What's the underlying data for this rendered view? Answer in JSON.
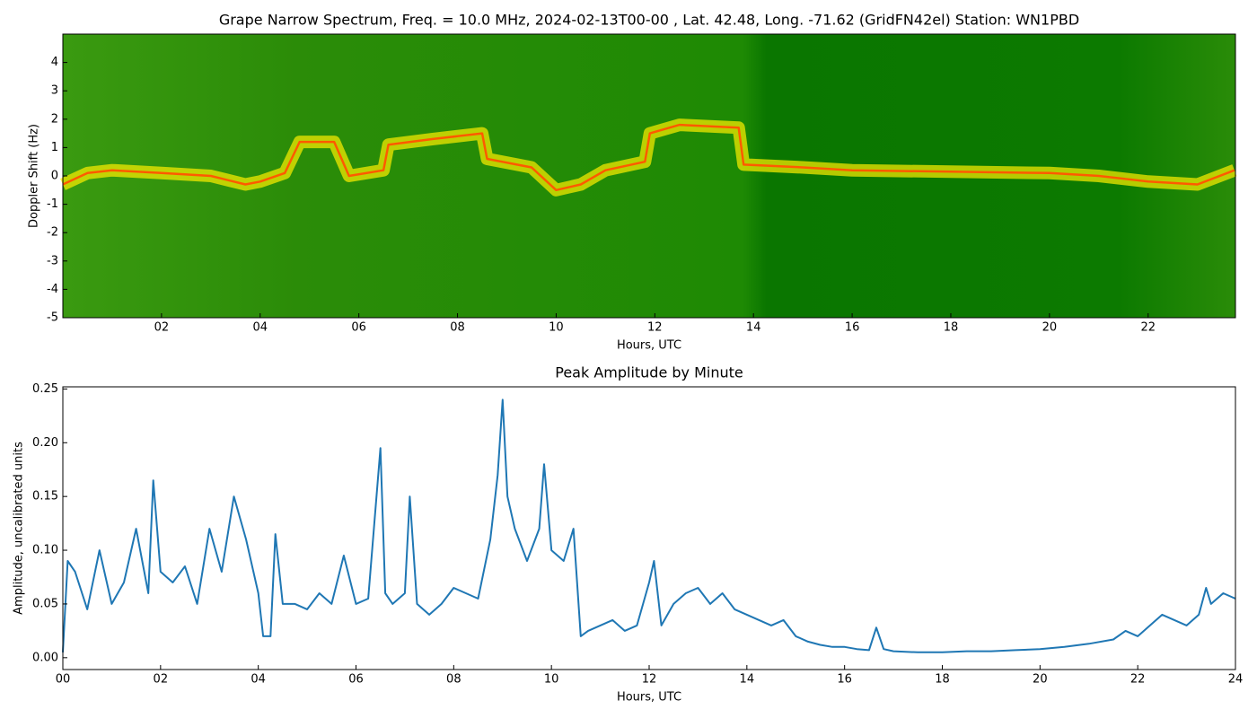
{
  "chart_data": [
    {
      "type": "spectrogram",
      "title": "Grape Narrow Spectrum, Freq. = 10.0 MHz, 2024-02-13T00-00 , Lat.  42.48, Long. -71.62 (GridFN42el) Station: WN1PBD",
      "xlabel": "Hours, UTC",
      "ylabel": "Doppler Shift (Hz)",
      "x": [
        0,
        0.5,
        1,
        2,
        3,
        3.7,
        4,
        4.5,
        4.8,
        5.5,
        5.8,
        6.5,
        6.6,
        7.5,
        8.5,
        8.6,
        9.5,
        10,
        10.5,
        11,
        11.8,
        11.9,
        12.5,
        13.7,
        13.8,
        15,
        16,
        18,
        20,
        21,
        22,
        23,
        23.75
      ],
      "values": [
        -0.3,
        0.1,
        0.2,
        0.1,
        0,
        -0.3,
        -0.2,
        0.1,
        1.2,
        1.2,
        0,
        0.2,
        1.1,
        1.3,
        1.5,
        0.6,
        0.3,
        -0.5,
        -0.3,
        0.2,
        0.5,
        1.5,
        1.8,
        1.7,
        0.4,
        0.3,
        0.2,
        0.15,
        0.1,
        0,
        -0.2,
        -0.3,
        0.2
      ],
      "color": "#ffee00",
      "xlim": [
        0,
        23.77
      ],
      "ylim": [
        -5,
        5
      ],
      "xticks": [
        {
          "value": 2,
          "label": "02"
        },
        {
          "value": 4,
          "label": "04"
        },
        {
          "value": 6,
          "label": "06"
        },
        {
          "value": 8,
          "label": "08"
        },
        {
          "value": 10,
          "label": "10"
        },
        {
          "value": 12,
          "label": "12"
        },
        {
          "value": 14,
          "label": "14"
        },
        {
          "value": 16,
          "label": "16"
        },
        {
          "value": 18,
          "label": "18"
        },
        {
          "value": 20,
          "label": "20"
        },
        {
          "value": 22,
          "label": "22"
        }
      ],
      "yticks": [
        -5,
        -4,
        -3,
        -2,
        -1,
        0,
        1,
        2,
        3,
        4
      ]
    },
    {
      "type": "line",
      "title": "Peak Amplitude by Minute",
      "xlabel": "Hours, UTC",
      "ylabel": "Amplitude, uncalibrated units",
      "x": [
        0,
        0.1,
        0.25,
        0.5,
        0.75,
        1.0,
        1.25,
        1.5,
        1.75,
        1.85,
        2.0,
        2.25,
        2.5,
        2.75,
        3.0,
        3.25,
        3.5,
        3.75,
        4.0,
        4.1,
        4.25,
        4.35,
        4.5,
        4.75,
        5.0,
        5.25,
        5.5,
        5.75,
        6.0,
        6.25,
        6.5,
        6.6,
        6.75,
        7.0,
        7.1,
        7.25,
        7.5,
        7.75,
        8.0,
        8.25,
        8.5,
        8.75,
        8.9,
        9.0,
        9.1,
        9.25,
        9.5,
        9.75,
        9.85,
        10.0,
        10.25,
        10.45,
        10.6,
        10.75,
        11.0,
        11.25,
        11.5,
        11.75,
        12.0,
        12.1,
        12.25,
        12.5,
        12.75,
        13.0,
        13.25,
        13.5,
        13.75,
        14.0,
        14.25,
        14.5,
        14.75,
        15.0,
        15.25,
        15.5,
        15.75,
        16.0,
        16.25,
        16.5,
        16.65,
        16.8,
        17.0,
        17.5,
        18.0,
        18.5,
        19.0,
        19.5,
        20.0,
        20.5,
        21.0,
        21.5,
        21.75,
        22.0,
        22.25,
        22.5,
        22.75,
        23.0,
        23.25,
        23.4,
        23.5,
        23.75,
        24.0
      ],
      "values": [
        0.005,
        0.09,
        0.08,
        0.045,
        0.1,
        0.05,
        0.07,
        0.12,
        0.06,
        0.165,
        0.08,
        0.07,
        0.085,
        0.05,
        0.12,
        0.08,
        0.15,
        0.11,
        0.06,
        0.02,
        0.02,
        0.115,
        0.05,
        0.05,
        0.045,
        0.06,
        0.05,
        0.095,
        0.05,
        0.055,
        0.195,
        0.06,
        0.05,
        0.06,
        0.15,
        0.05,
        0.04,
        0.05,
        0.065,
        0.06,
        0.055,
        0.11,
        0.17,
        0.24,
        0.15,
        0.12,
        0.09,
        0.12,
        0.18,
        0.1,
        0.09,
        0.12,
        0.02,
        0.025,
        0.03,
        0.035,
        0.025,
        0.03,
        0.07,
        0.09,
        0.03,
        0.05,
        0.06,
        0.065,
        0.05,
        0.06,
        0.045,
        0.04,
        0.035,
        0.03,
        0.035,
        0.02,
        0.015,
        0.012,
        0.01,
        0.01,
        0.008,
        0.007,
        0.028,
        0.008,
        0.006,
        0.005,
        0.005,
        0.006,
        0.006,
        0.007,
        0.008,
        0.01,
        0.013,
        0.017,
        0.025,
        0.02,
        0.03,
        0.04,
        0.035,
        0.03,
        0.04,
        0.065,
        0.05,
        0.06,
        0.055
      ],
      "color": "#1f77b4",
      "xlim": [
        0,
        24
      ],
      "ylim": [
        -0.011,
        0.252
      ],
      "xticks": [
        {
          "value": 0,
          "label": "00"
        },
        {
          "value": 2,
          "label": "02"
        },
        {
          "value": 4,
          "label": "04"
        },
        {
          "value": 6,
          "label": "06"
        },
        {
          "value": 8,
          "label": "08"
        },
        {
          "value": 10,
          "label": "10"
        },
        {
          "value": 12,
          "label": "12"
        },
        {
          "value": 14,
          "label": "14"
        },
        {
          "value": 16,
          "label": "16"
        },
        {
          "value": 18,
          "label": "18"
        },
        {
          "value": 20,
          "label": "20"
        },
        {
          "value": 22,
          "label": "22"
        },
        {
          "value": 24,
          "label": "24"
        }
      ],
      "yticks": [
        {
          "value": 0,
          "label": "0.00"
        },
        {
          "value": 0.05,
          "label": "0.05"
        },
        {
          "value": 0.1,
          "label": "0.10"
        },
        {
          "value": 0.15,
          "label": "0.15"
        },
        {
          "value": 0.2,
          "label": "0.20"
        },
        {
          "value": 0.25,
          "label": "0.25"
        }
      ]
    }
  ]
}
